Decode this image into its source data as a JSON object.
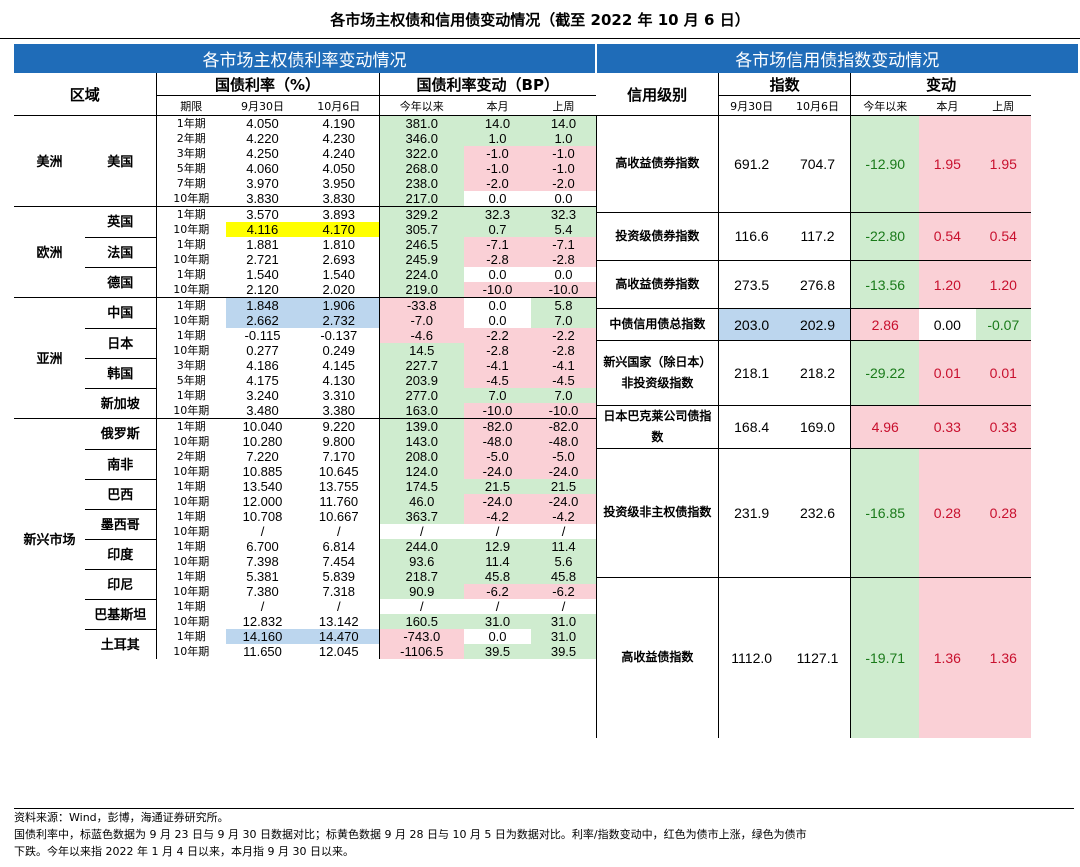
{
  "title": "各市场主权债和信用债变动情况（截至 2022 年 10 月 6 日）",
  "sovereign": {
    "header": "各市场主权债利率变动情况",
    "col_region": "区域",
    "col_rate": "国债利率（%）",
    "col_change": "国债利率变动（BP）",
    "sub_term": "期限",
    "sub_d1": "9月30日",
    "sub_d2": "10月6日",
    "sub_ytd": "今年以来",
    "sub_mtd": "本月",
    "sub_wk": "上周",
    "regions": [
      {
        "name": "美洲",
        "countries": [
          {
            "name": "美国",
            "rows": [
              {
                "term": "1年期",
                "d1": "4.050",
                "d2": "4.190",
                "ytd": "381.0",
                "mtd": "14.0",
                "wk": "14.0",
                "c": [
                  "",
                  "",
                  "g",
                  "g",
                  "g"
                ]
              },
              {
                "term": "2年期",
                "d1": "4.220",
                "d2": "4.230",
                "ytd": "346.0",
                "mtd": "1.0",
                "wk": "1.0",
                "c": [
                  "",
                  "",
                  "g",
                  "g",
                  "g"
                ]
              },
              {
                "term": "3年期",
                "d1": "4.250",
                "d2": "4.240",
                "ytd": "322.0",
                "mtd": "-1.0",
                "wk": "-1.0",
                "c": [
                  "",
                  "",
                  "g",
                  "r",
                  "r"
                ]
              },
              {
                "term": "5年期",
                "d1": "4.060",
                "d2": "4.050",
                "ytd": "268.0",
                "mtd": "-1.0",
                "wk": "-1.0",
                "c": [
                  "",
                  "",
                  "g",
                  "r",
                  "r"
                ]
              },
              {
                "term": "7年期",
                "d1": "3.970",
                "d2": "3.950",
                "ytd": "238.0",
                "mtd": "-2.0",
                "wk": "-2.0",
                "c": [
                  "",
                  "",
                  "g",
                  "r",
                  "r"
                ]
              },
              {
                "term": "10年期",
                "d1": "3.830",
                "d2": "3.830",
                "ytd": "217.0",
                "mtd": "0.0",
                "wk": "0.0",
                "c": [
                  "",
                  "",
                  "g",
                  "w",
                  "w"
                ]
              }
            ]
          }
        ]
      },
      {
        "name": "欧洲",
        "countries": [
          {
            "name": "英国",
            "rows": [
              {
                "term": "1年期",
                "d1": "3.570",
                "d2": "3.893",
                "ytd": "329.2",
                "mtd": "32.3",
                "wk": "32.3",
                "c": [
                  "",
                  "",
                  "g",
                  "g",
                  "g"
                ]
              },
              {
                "term": "10年期",
                "d1": "4.116",
                "d2": "4.170",
                "ytd": "305.7",
                "mtd": "0.7",
                "wk": "5.4",
                "c": [
                  "y",
                  "y",
                  "g",
                  "g",
                  "g"
                ]
              }
            ]
          },
          {
            "name": "法国",
            "rows": [
              {
                "term": "1年期",
                "d1": "1.881",
                "d2": "1.810",
                "ytd": "246.5",
                "mtd": "-7.1",
                "wk": "-7.1",
                "c": [
                  "",
                  "",
                  "g",
                  "r",
                  "r"
                ]
              },
              {
                "term": "10年期",
                "d1": "2.721",
                "d2": "2.693",
                "ytd": "245.9",
                "mtd": "-2.8",
                "wk": "-2.8",
                "c": [
                  "",
                  "",
                  "g",
                  "r",
                  "r"
                ]
              }
            ]
          },
          {
            "name": "德国",
            "rows": [
              {
                "term": "1年期",
                "d1": "1.540",
                "d2": "1.540",
                "ytd": "224.0",
                "mtd": "0.0",
                "wk": "0.0",
                "c": [
                  "",
                  "",
                  "g",
                  "w",
                  "w"
                ]
              },
              {
                "term": "10年期",
                "d1": "2.120",
                "d2": "2.020",
                "ytd": "219.0",
                "mtd": "-10.0",
                "wk": "-10.0",
                "c": [
                  "",
                  "",
                  "g",
                  "r",
                  "r"
                ]
              }
            ]
          }
        ]
      },
      {
        "name": "亚洲",
        "countries": [
          {
            "name": "中国",
            "rows": [
              {
                "term": "1年期",
                "d1": "1.848",
                "d2": "1.906",
                "ytd": "-33.8",
                "mtd": "0.0",
                "wk": "5.8",
                "c": [
                  "b",
                  "b",
                  "r",
                  "w",
                  "g"
                ]
              },
              {
                "term": "10年期",
                "d1": "2.662",
                "d2": "2.732",
                "ytd": "-7.0",
                "mtd": "0.0",
                "wk": "7.0",
                "c": [
                  "b",
                  "b",
                  "r",
                  "w",
                  "g"
                ]
              }
            ]
          },
          {
            "name": "日本",
            "rows": [
              {
                "term": "1年期",
                "d1": "-0.115",
                "d2": "-0.137",
                "ytd": "-4.6",
                "mtd": "-2.2",
                "wk": "-2.2",
                "c": [
                  "",
                  "",
                  "r",
                  "r",
                  "r"
                ]
              },
              {
                "term": "10年期",
                "d1": "0.277",
                "d2": "0.249",
                "ytd": "14.5",
                "mtd": "-2.8",
                "wk": "-2.8",
                "c": [
                  "",
                  "",
                  "g",
                  "r",
                  "r"
                ]
              }
            ]
          },
          {
            "name": "韩国",
            "rows": [
              {
                "term": "3年期",
                "d1": "4.186",
                "d2": "4.145",
                "ytd": "227.7",
                "mtd": "-4.1",
                "wk": "-4.1",
                "c": [
                  "",
                  "",
                  "g",
                  "r",
                  "r"
                ]
              },
              {
                "term": "5年期",
                "d1": "4.175",
                "d2": "4.130",
                "ytd": "203.9",
                "mtd": "-4.5",
                "wk": "-4.5",
                "c": [
                  "",
                  "",
                  "g",
                  "r",
                  "r"
                ]
              }
            ]
          },
          {
            "name": "新加坡",
            "rows": [
              {
                "term": "1年期",
                "d1": "3.240",
                "d2": "3.310",
                "ytd": "277.0",
                "mtd": "7.0",
                "wk": "7.0",
                "c": [
                  "",
                  "",
                  "g",
                  "g",
                  "g"
                ]
              },
              {
                "term": "10年期",
                "d1": "3.480",
                "d2": "3.380",
                "ytd": "163.0",
                "mtd": "-10.0",
                "wk": "-10.0",
                "c": [
                  "",
                  "",
                  "g",
                  "r",
                  "r"
                ]
              }
            ]
          }
        ]
      },
      {
        "name": "新兴市场",
        "countries": [
          {
            "name": "俄罗斯",
            "rows": [
              {
                "term": "1年期",
                "d1": "10.040",
                "d2": "9.220",
                "ytd": "139.0",
                "mtd": "-82.0",
                "wk": "-82.0",
                "c": [
                  "",
                  "",
                  "g",
                  "r",
                  "r"
                ]
              },
              {
                "term": "10年期",
                "d1": "10.280",
                "d2": "9.800",
                "ytd": "143.0",
                "mtd": "-48.0",
                "wk": "-48.0",
                "c": [
                  "",
                  "",
                  "g",
                  "r",
                  "r"
                ]
              }
            ]
          },
          {
            "name": "南非",
            "rows": [
              {
                "term": "2年期",
                "d1": "7.220",
                "d2": "7.170",
                "ytd": "208.0",
                "mtd": "-5.0",
                "wk": "-5.0",
                "c": [
                  "",
                  "",
                  "g",
                  "r",
                  "r"
                ]
              },
              {
                "term": "10年期",
                "d1": "10.885",
                "d2": "10.645",
                "ytd": "124.0",
                "mtd": "-24.0",
                "wk": "-24.0",
                "c": [
                  "",
                  "",
                  "g",
                  "r",
                  "r"
                ]
              }
            ]
          },
          {
            "name": "巴西",
            "rows": [
              {
                "term": "1年期",
                "d1": "13.540",
                "d2": "13.755",
                "ytd": "174.5",
                "mtd": "21.5",
                "wk": "21.5",
                "c": [
                  "",
                  "",
                  "g",
                  "g",
                  "g"
                ]
              },
              {
                "term": "10年期",
                "d1": "12.000",
                "d2": "11.760",
                "ytd": "46.0",
                "mtd": "-24.0",
                "wk": "-24.0",
                "c": [
                  "",
                  "",
                  "g",
                  "r",
                  "r"
                ]
              }
            ]
          },
          {
            "name": "墨西哥",
            "rows": [
              {
                "term": "1年期",
                "d1": "10.708",
                "d2": "10.667",
                "ytd": "363.7",
                "mtd": "-4.2",
                "wk": "-4.2",
                "c": [
                  "",
                  "",
                  "g",
                  "r",
                  "r"
                ]
              },
              {
                "term": "10年期",
                "d1": "/",
                "d2": "/",
                "ytd": "/",
                "mtd": "/",
                "wk": "/",
                "c": [
                  "",
                  "",
                  "w",
                  "w",
                  "w"
                ]
              }
            ]
          },
          {
            "name": "印度",
            "rows": [
              {
                "term": "1年期",
                "d1": "6.700",
                "d2": "6.814",
                "ytd": "244.0",
                "mtd": "12.9",
                "wk": "11.4",
                "c": [
                  "",
                  "",
                  "g",
                  "g",
                  "g"
                ]
              },
              {
                "term": "10年期",
                "d1": "7.398",
                "d2": "7.454",
                "ytd": "93.6",
                "mtd": "11.4",
                "wk": "5.6",
                "c": [
                  "",
                  "",
                  "g",
                  "g",
                  "g"
                ]
              }
            ]
          },
          {
            "name": "印尼",
            "rows": [
              {
                "term": "1年期",
                "d1": "5.381",
                "d2": "5.839",
                "ytd": "218.7",
                "mtd": "45.8",
                "wk": "45.8",
                "c": [
                  "",
                  "",
                  "g",
                  "g",
                  "g"
                ]
              },
              {
                "term": "10年期",
                "d1": "7.380",
                "d2": "7.318",
                "ytd": "90.9",
                "mtd": "-6.2",
                "wk": "-6.2",
                "c": [
                  "",
                  "",
                  "g",
                  "r",
                  "r"
                ]
              }
            ]
          },
          {
            "name": "巴基斯坦",
            "rows": [
              {
                "term": "1年期",
                "d1": "/",
                "d2": "/",
                "ytd": "/",
                "mtd": "/",
                "wk": "/",
                "c": [
                  "",
                  "",
                  "w",
                  "w",
                  "w"
                ]
              },
              {
                "term": "10年期",
                "d1": "12.832",
                "d2": "13.142",
                "ytd": "160.5",
                "mtd": "31.0",
                "wk": "31.0",
                "c": [
                  "",
                  "",
                  "g",
                  "g",
                  "g"
                ]
              }
            ]
          },
          {
            "name": "土耳其",
            "rows": [
              {
                "term": "1年期",
                "d1": "14.160",
                "d2": "14.470",
                "ytd": "-743.0",
                "mtd": "0.0",
                "wk": "31.0",
                "c": [
                  "b",
                  "b",
                  "r",
                  "w",
                  "g"
                ]
              },
              {
                "term": "10年期",
                "d1": "11.650",
                "d2": "12.045",
                "ytd": "-1106.5",
                "mtd": "39.5",
                "wk": "39.5",
                "c": [
                  "",
                  "",
                  "r",
                  "g",
                  "g"
                ]
              }
            ]
          }
        ]
      }
    ]
  },
  "credit": {
    "header": "各市场信用债指数变动情况",
    "col_rating": "信用级别",
    "col_index": "指数",
    "col_change": "变动",
    "sub_d1": "9月30日",
    "sub_d2": "10月6日",
    "sub_ytd": "今年以来",
    "sub_mtd": "本月",
    "sub_wk": "上周",
    "rows": [
      {
        "label": "高收益债券指数",
        "span": 6,
        "d1": "691.2",
        "d2": "704.7",
        "ytd": "-12.90",
        "mtd": "1.95",
        "wk": "1.95",
        "c": [
          "",
          "",
          "g",
          "r",
          "r"
        ]
      },
      {
        "label": "投资级债券指数",
        "span": 3,
        "d1": "116.6",
        "d2": "117.2",
        "ytd": "-22.80",
        "mtd": "0.54",
        "wk": "0.54",
        "c": [
          "",
          "",
          "g",
          "r",
          "r"
        ]
      },
      {
        "label": "高收益债券指数",
        "span": 3,
        "d1": "273.5",
        "d2": "276.8",
        "ytd": "-13.56",
        "mtd": "1.20",
        "wk": "1.20",
        "c": [
          "",
          "",
          "g",
          "r",
          "r"
        ]
      },
      {
        "label": "中债信用债总指数",
        "span": 2,
        "d1": "203.0",
        "d2": "202.9",
        "ytd": "2.86",
        "mtd": "0.00",
        "wk": "-0.07",
        "c": [
          "b",
          "b",
          "r",
          "w",
          "g"
        ]
      },
      {
        "label": "新兴国家（除日本）非投资级指数",
        "span": 4,
        "d1": "218.1",
        "d2": "218.2",
        "ytd": "-29.22",
        "mtd": "0.01",
        "wk": "0.01",
        "c": [
          "",
          "",
          "g",
          "r",
          "r"
        ]
      },
      {
        "label": "日本巴克莱公司债指数",
        "span": 2,
        "d1": "168.4",
        "d2": "169.0",
        "ytd": "4.96",
        "mtd": "0.33",
        "wk": "0.33",
        "c": [
          "",
          "",
          "r",
          "r",
          "r"
        ]
      },
      {
        "label": "投资级非主权债指数",
        "span": 8,
        "d1": "231.9",
        "d2": "232.6",
        "ytd": "-16.85",
        "mtd": "0.28",
        "wk": "0.28",
        "c": [
          "",
          "",
          "g",
          "r",
          "r"
        ]
      },
      {
        "label": "高收益债指数",
        "span": 10,
        "d1": "1112.0",
        "d2": "1127.1",
        "ytd": "-19.71",
        "mtd": "1.36",
        "wk": "1.36",
        "c": [
          "",
          "",
          "g",
          "r",
          "r"
        ]
      }
    ]
  },
  "notes": {
    "source": "资料来源：Wind，彭博，海通证券研究所。",
    "line1": "国债利率中，标蓝色数据为 9 月 23 日与 9 月 30 日数据对比；标黄色数据 9 月 28 日与 10 月 5 日为数据对比。利率/指数变动中，红色为债市上涨，绿色为债市",
    "line2": "下跌。今年以来指 2022 年 1 月 4 日以来，本月指 9 月 30 日以来。"
  },
  "colors": {
    "header_blue": "#1f6cb8",
    "green_cell": "#cfeccf",
    "red_cell": "#fad0d6",
    "yellow_cell": "#ffff00",
    "blue_cell": "#bcd6ee"
  }
}
